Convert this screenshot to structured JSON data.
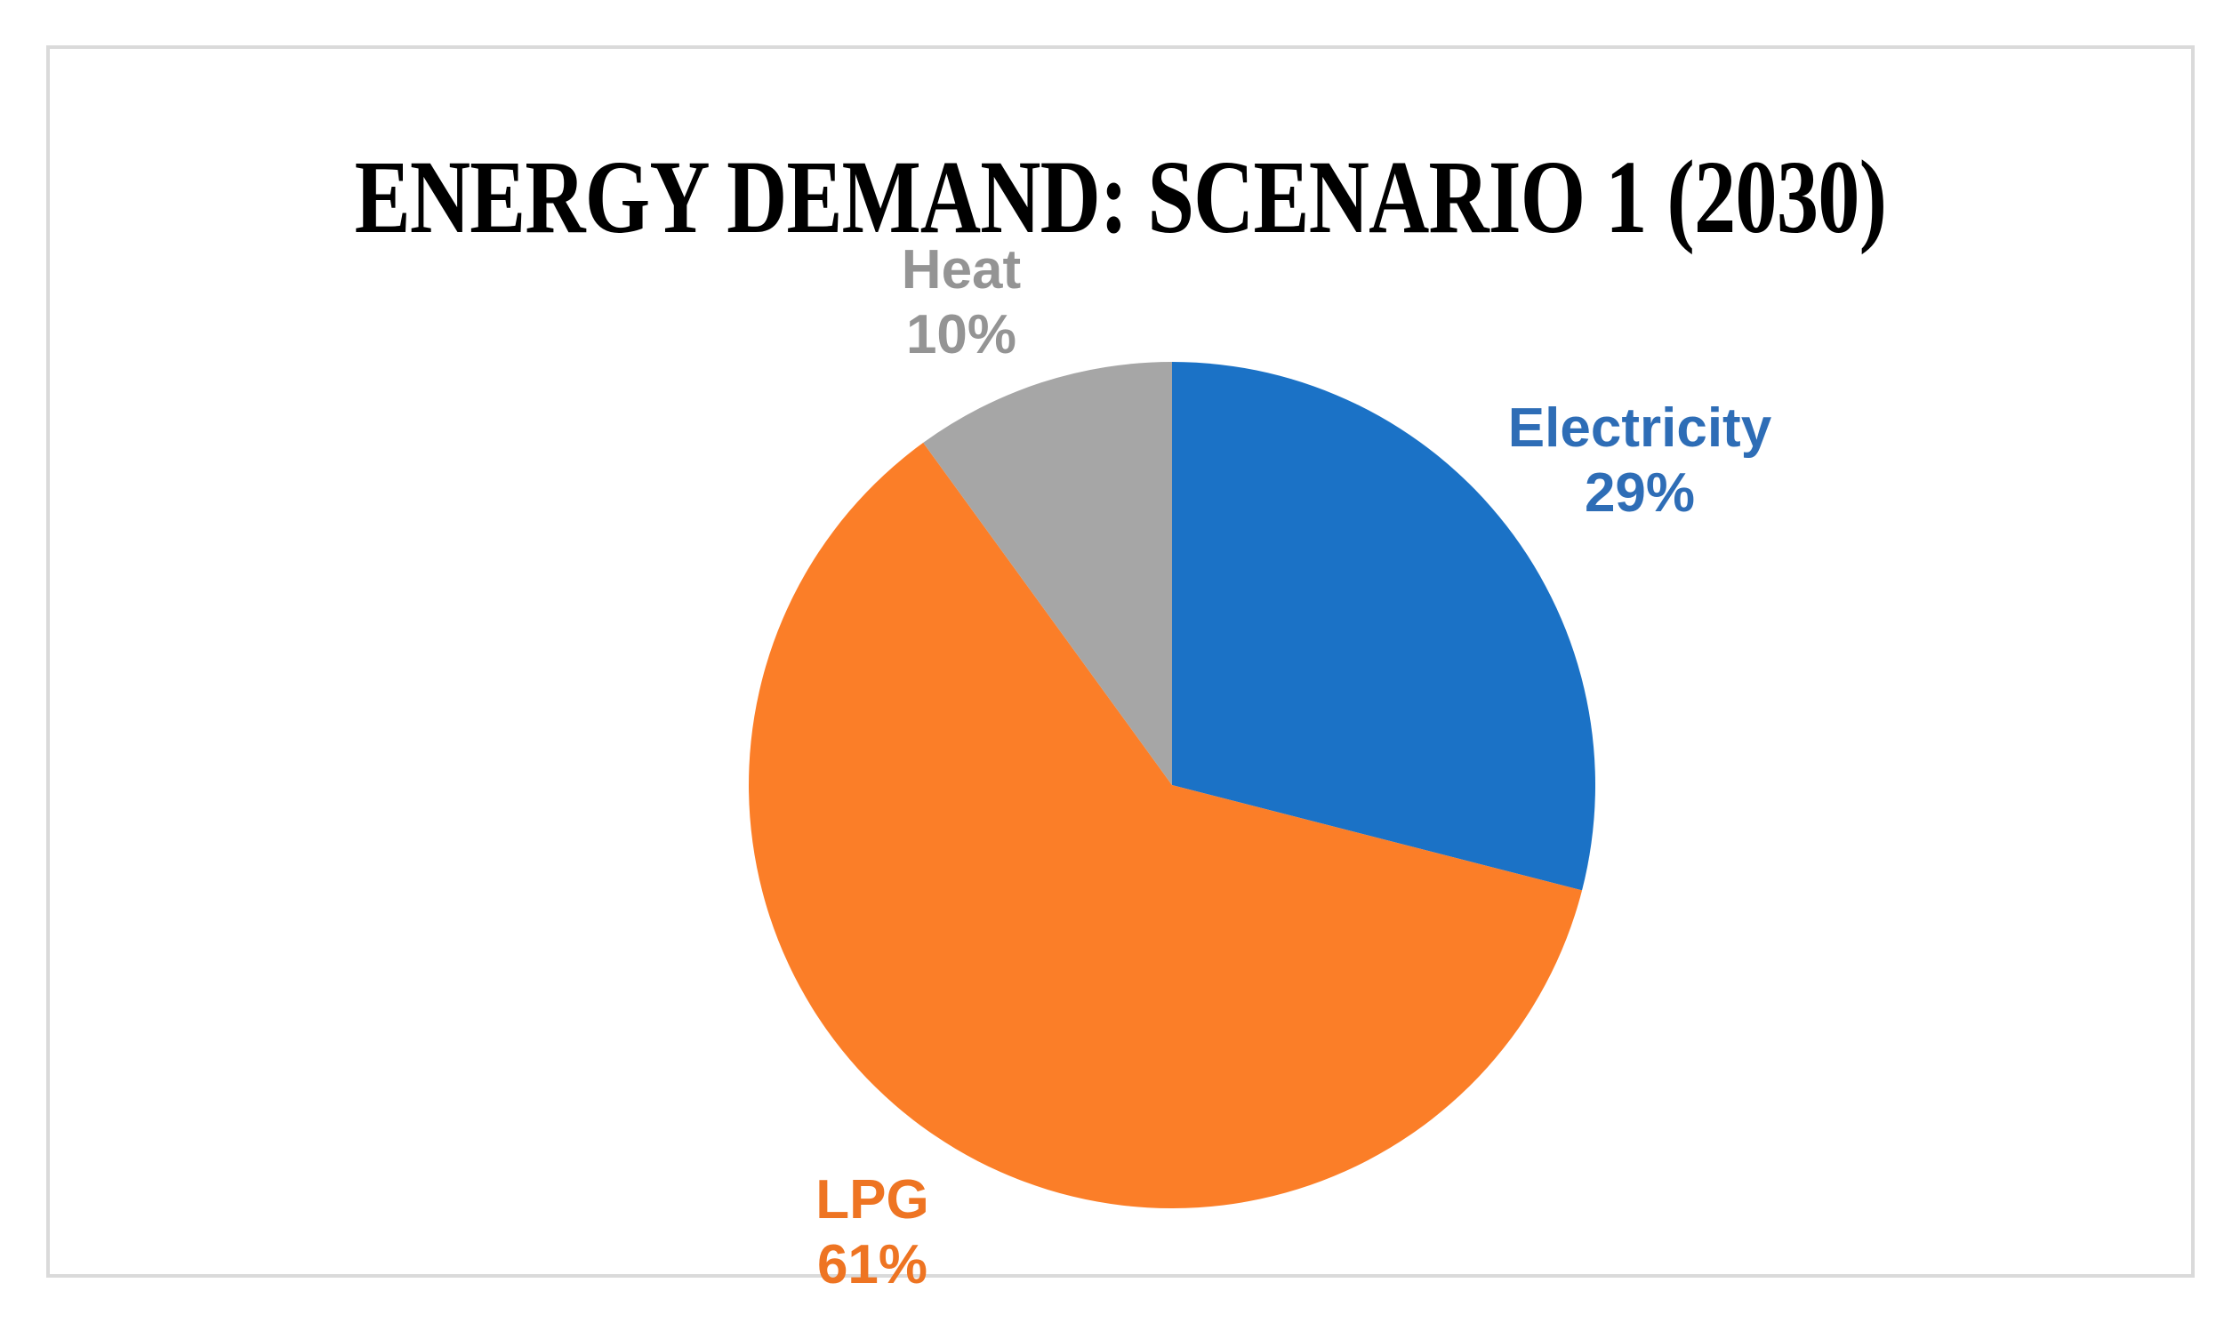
{
  "figure": {
    "title": "ENERGY DEMAND: SCENARIO 1 (2030)"
  },
  "chart_data": {
    "type": "pie",
    "title": "ENERGY DEMAND: SCENARIO 1 (2030)",
    "categories": [
      "Electricity",
      "LPG",
      "Heat"
    ],
    "values": [
      29,
      61,
      10
    ],
    "value_unit": "percent",
    "start_angle_deg": 0,
    "direction": "clockwise",
    "legend": "none",
    "data_label_style": "category name and percentage, outside slices, colored to match slice",
    "slice_colors": [
      "#1B72C6",
      "#FB7E28",
      "#A6A6A6"
    ],
    "label_text_colors": [
      "#2E6DB6",
      "#EE7422",
      "#949494"
    ],
    "labels": [
      {
        "name": "Electricity",
        "pct": "29%"
      },
      {
        "name": "LPG",
        "pct": "61%"
      },
      {
        "name": "Heat",
        "pct": "10%"
      }
    ],
    "frame_border_color": "#DADADA",
    "title_color": "#000000",
    "background_color": "#FFFFFF"
  }
}
